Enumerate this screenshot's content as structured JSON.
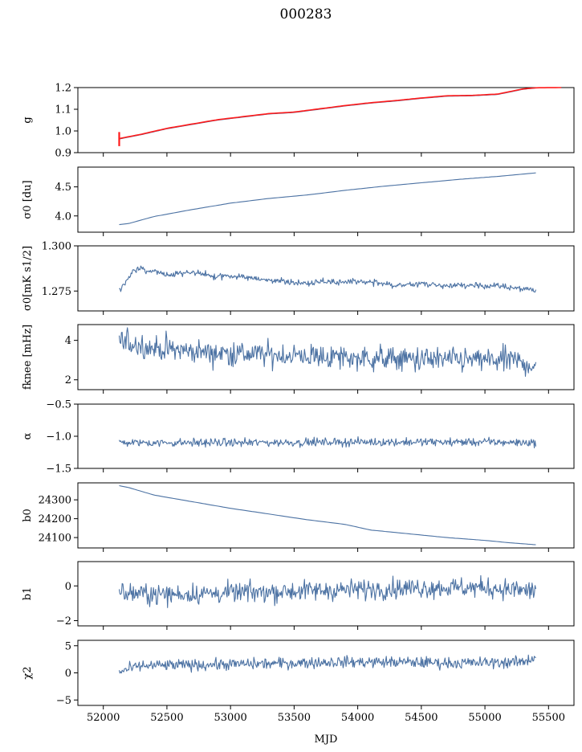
{
  "figure": {
    "title": "000283",
    "xlabel": "MJD"
  },
  "chart_data": [
    {
      "type": "line",
      "ylabel": "g",
      "xlim": [
        51800,
        55700
      ],
      "ylim": [
        0.9,
        1.2
      ],
      "yticks": [
        "0.9",
        "1.0",
        "1.1",
        "1.2"
      ],
      "ytick_values": [
        0.9,
        1.0,
        1.1,
        1.2
      ],
      "series": [
        {
          "color": "#4c72a3",
          "x": [
            52125,
            52300,
            52500,
            52700,
            52900,
            53100,
            53300,
            53500,
            53700,
            53900,
            54100,
            54300,
            54500,
            54700,
            54900,
            55100,
            55300,
            55400
          ],
          "y": [
            0.963,
            0.983,
            1.01,
            1.03,
            1.05,
            1.064,
            1.078,
            1.085,
            1.1,
            1.115,
            1.128,
            1.138,
            1.15,
            1.16,
            1.162,
            1.168,
            1.192,
            1.198
          ]
        },
        {
          "color": "#ff1a1a",
          "x": [
            52125,
            52300,
            52500,
            52700,
            52900,
            53100,
            53300,
            53500,
            53700,
            53900,
            54100,
            54300,
            54500,
            54700,
            54900,
            55100,
            55300,
            55400,
            55600
          ],
          "y": [
            0.965,
            0.985,
            1.012,
            1.032,
            1.052,
            1.066,
            1.08,
            1.087,
            1.102,
            1.117,
            1.13,
            1.14,
            1.152,
            1.162,
            1.164,
            1.17,
            1.194,
            1.199,
            1.2
          ],
          "spike": {
            "x": 52125,
            "ymin": 0.93,
            "ymax": 0.995
          }
        }
      ]
    },
    {
      "type": "line",
      "ylabel": "σ0 [du]",
      "xlim": [
        51800,
        55700
      ],
      "ylim": [
        3.72,
        4.84
      ],
      "yticks": [
        "4.0",
        "4.5"
      ],
      "ytick_values": [
        4.0,
        4.5
      ],
      "series": [
        {
          "color": "#4c72a3",
          "x": [
            52125,
            52200,
            52400,
            52700,
            53000,
            53300,
            53600,
            53900,
            54200,
            54500,
            54800,
            55100,
            55400
          ],
          "y": [
            3.85,
            3.87,
            3.99,
            4.11,
            4.22,
            4.3,
            4.36,
            4.44,
            4.51,
            4.57,
            4.63,
            4.68,
            4.74
          ]
        }
      ]
    },
    {
      "type": "line",
      "ylabel": "σ0[mK s1/2]",
      "xlim": [
        51800,
        55700
      ],
      "ylim": [
        1.264,
        1.3
      ],
      "yticks": [
        "1.275",
        "1.300"
      ],
      "ytick_values": [
        1.275,
        1.3
      ],
      "series": [
        {
          "color": "#4c72a3",
          "x": [
            52125,
            52170,
            52230,
            52300,
            52500,
            52700,
            52900,
            53100,
            53300,
            53500,
            53700,
            53900,
            54100,
            54300,
            54500,
            54700,
            54900,
            55100,
            55300,
            55400
          ],
          "y": [
            1.276,
            1.279,
            1.286,
            1.287,
            1.284,
            1.285,
            1.283,
            1.283,
            1.281,
            1.279,
            1.28,
            1.28,
            1.28,
            1.278,
            1.279,
            1.278,
            1.278,
            1.278,
            1.276,
            1.275
          ],
          "noise": 0.0012
        }
      ]
    },
    {
      "type": "line",
      "ylabel": "fknee [mHz]",
      "xlim": [
        51800,
        55700
      ],
      "ylim": [
        1.5,
        4.8
      ],
      "yticks": [
        "2",
        "4"
      ],
      "ytick_values": [
        2,
        4
      ],
      "series": [
        {
          "color": "#4c72a3",
          "x": [
            52125,
            52400,
            52800,
            53200,
            53600,
            54000,
            54400,
            54800,
            55200,
            55400
          ],
          "y": [
            4.0,
            3.6,
            3.4,
            3.3,
            3.2,
            3.1,
            3.05,
            3.0,
            3.0,
            2.7
          ],
          "noise": 0.45
        }
      ]
    },
    {
      "type": "line",
      "ylabel": "α",
      "xlim": [
        51800,
        55700
      ],
      "ylim": [
        -1.5,
        -0.5
      ],
      "yticks": [
        "−1.5",
        "−1.0",
        "−0.5"
      ],
      "ytick_values": [
        -1.5,
        -1.0,
        -0.5
      ],
      "series": [
        {
          "color": "#4c72a3",
          "x": [
            52125,
            53000,
            54000,
            55000,
            55400
          ],
          "y": [
            -1.1,
            -1.1,
            -1.09,
            -1.09,
            -1.1
          ],
          "noise": 0.045
        }
      ]
    },
    {
      "type": "line",
      "ylabel": "b0",
      "xlim": [
        51800,
        55700
      ],
      "ylim": [
        24045,
        24390
      ],
      "yticks": [
        "24100",
        "24200",
        "24300"
      ],
      "ytick_values": [
        24100,
        24200,
        24300
      ],
      "series": [
        {
          "color": "#4c72a3",
          "x": [
            52125,
            52200,
            52400,
            52700,
            53000,
            53300,
            53600,
            53900,
            54100,
            54400,
            54700,
            55000,
            55200,
            55400
          ],
          "y": [
            24375,
            24365,
            24325,
            24290,
            24255,
            24225,
            24195,
            24170,
            24140,
            24120,
            24100,
            24085,
            24072,
            24062
          ]
        }
      ]
    },
    {
      "type": "line",
      "ylabel": "b1",
      "xlim": [
        51800,
        55700
      ],
      "ylim": [
        -2.3,
        1.4
      ],
      "yticks": [
        "−2",
        "0"
      ],
      "ytick_values": [
        -2,
        0
      ],
      "series": [
        {
          "color": "#4c72a3",
          "x": [
            52125,
            52500,
            53000,
            53500,
            54000,
            54500,
            55000,
            55400
          ],
          "y": [
            -0.4,
            -0.5,
            -0.4,
            -0.3,
            -0.2,
            -0.1,
            -0.1,
            -0.3
          ],
          "noise": 0.42
        }
      ]
    },
    {
      "type": "line",
      "ylabel": "χ2",
      "xlim": [
        51800,
        55700
      ],
      "ylim": [
        -6,
        6
      ],
      "yticks": [
        "−5",
        "0",
        "5"
      ],
      "ytick_values": [
        -5,
        0,
        5
      ],
      "series": [
        {
          "color": "#4c72a3",
          "x": [
            52125,
            52300,
            52800,
            53300,
            53800,
            54300,
            54800,
            55300,
            55400
          ],
          "y": [
            0.2,
            1.3,
            1.5,
            1.7,
            2.0,
            2.0,
            1.8,
            2.0,
            3.0
          ],
          "noise": 0.75
        }
      ]
    }
  ],
  "xaxis": {
    "ticks": [
      "52000",
      "52500",
      "53000",
      "53500",
      "54000",
      "54500",
      "55000",
      "55500"
    ],
    "tick_values": [
      52000,
      52500,
      53000,
      53500,
      54000,
      54500,
      55000,
      55500
    ]
  }
}
